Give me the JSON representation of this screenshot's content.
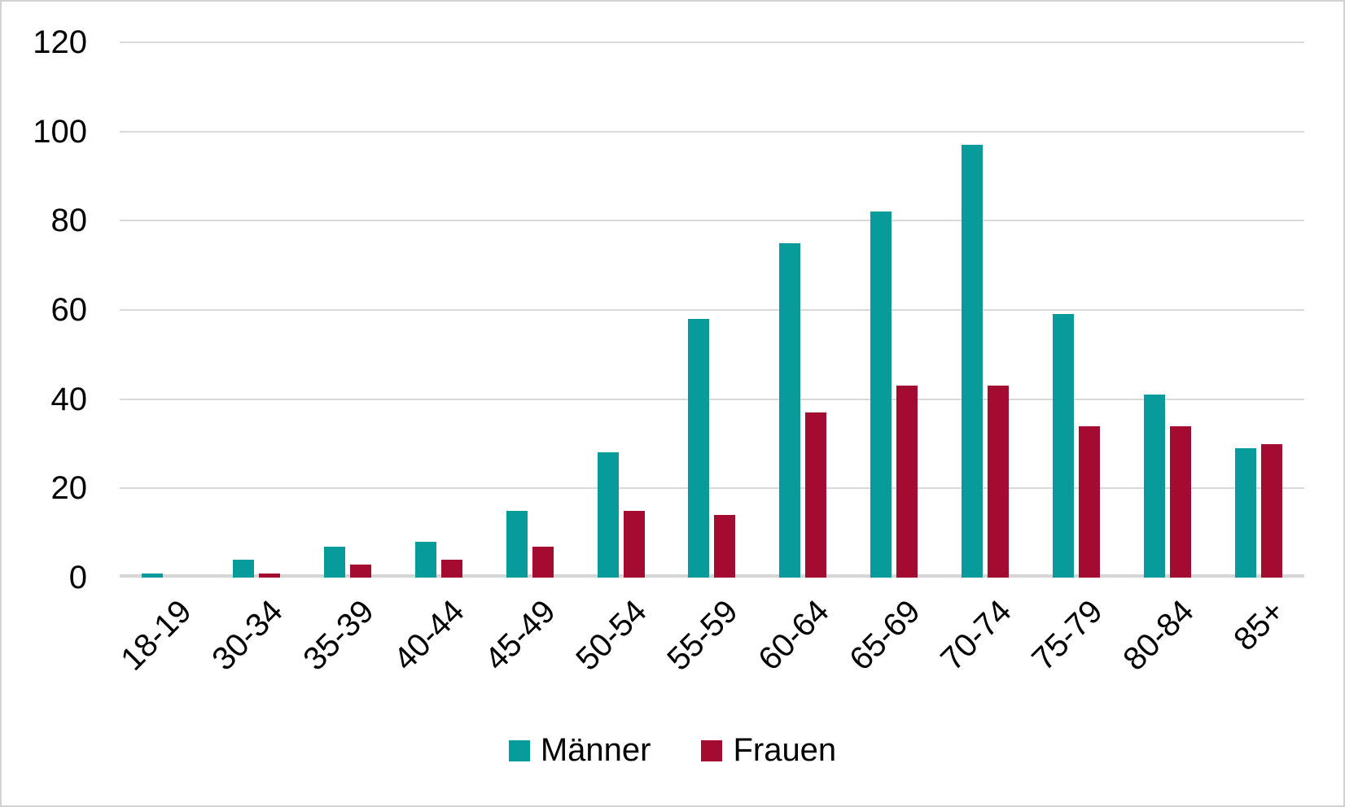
{
  "chart_data": {
    "type": "bar",
    "title": "",
    "categories": [
      "18-19",
      "30-34",
      "35-39",
      "40-44",
      "45-49",
      "50-54",
      "55-59",
      "60-64",
      "65-69",
      "70-74",
      "75-79",
      "80-84",
      "85+"
    ],
    "series": [
      {
        "name": "Männer",
        "color": "#089B9B",
        "values": [
          1,
          4,
          7,
          8,
          15,
          28,
          58,
          75,
          82,
          97,
          59,
          41,
          29
        ]
      },
      {
        "name": "Frauen",
        "color": "#A50A30",
        "values": [
          0,
          1,
          3,
          4,
          7,
          15,
          14,
          37,
          43,
          43,
          34,
          34,
          30
        ]
      }
    ],
    "xlabel": "",
    "ylabel": "",
    "ylim": [
      0,
      120
    ],
    "yticks": [
      0,
      20,
      40,
      60,
      80,
      100,
      120
    ],
    "grid": "horizontal",
    "gridline_color": "#d9d9d9",
    "legend_position": "bottom",
    "x_label_rotation_deg": 45
  }
}
